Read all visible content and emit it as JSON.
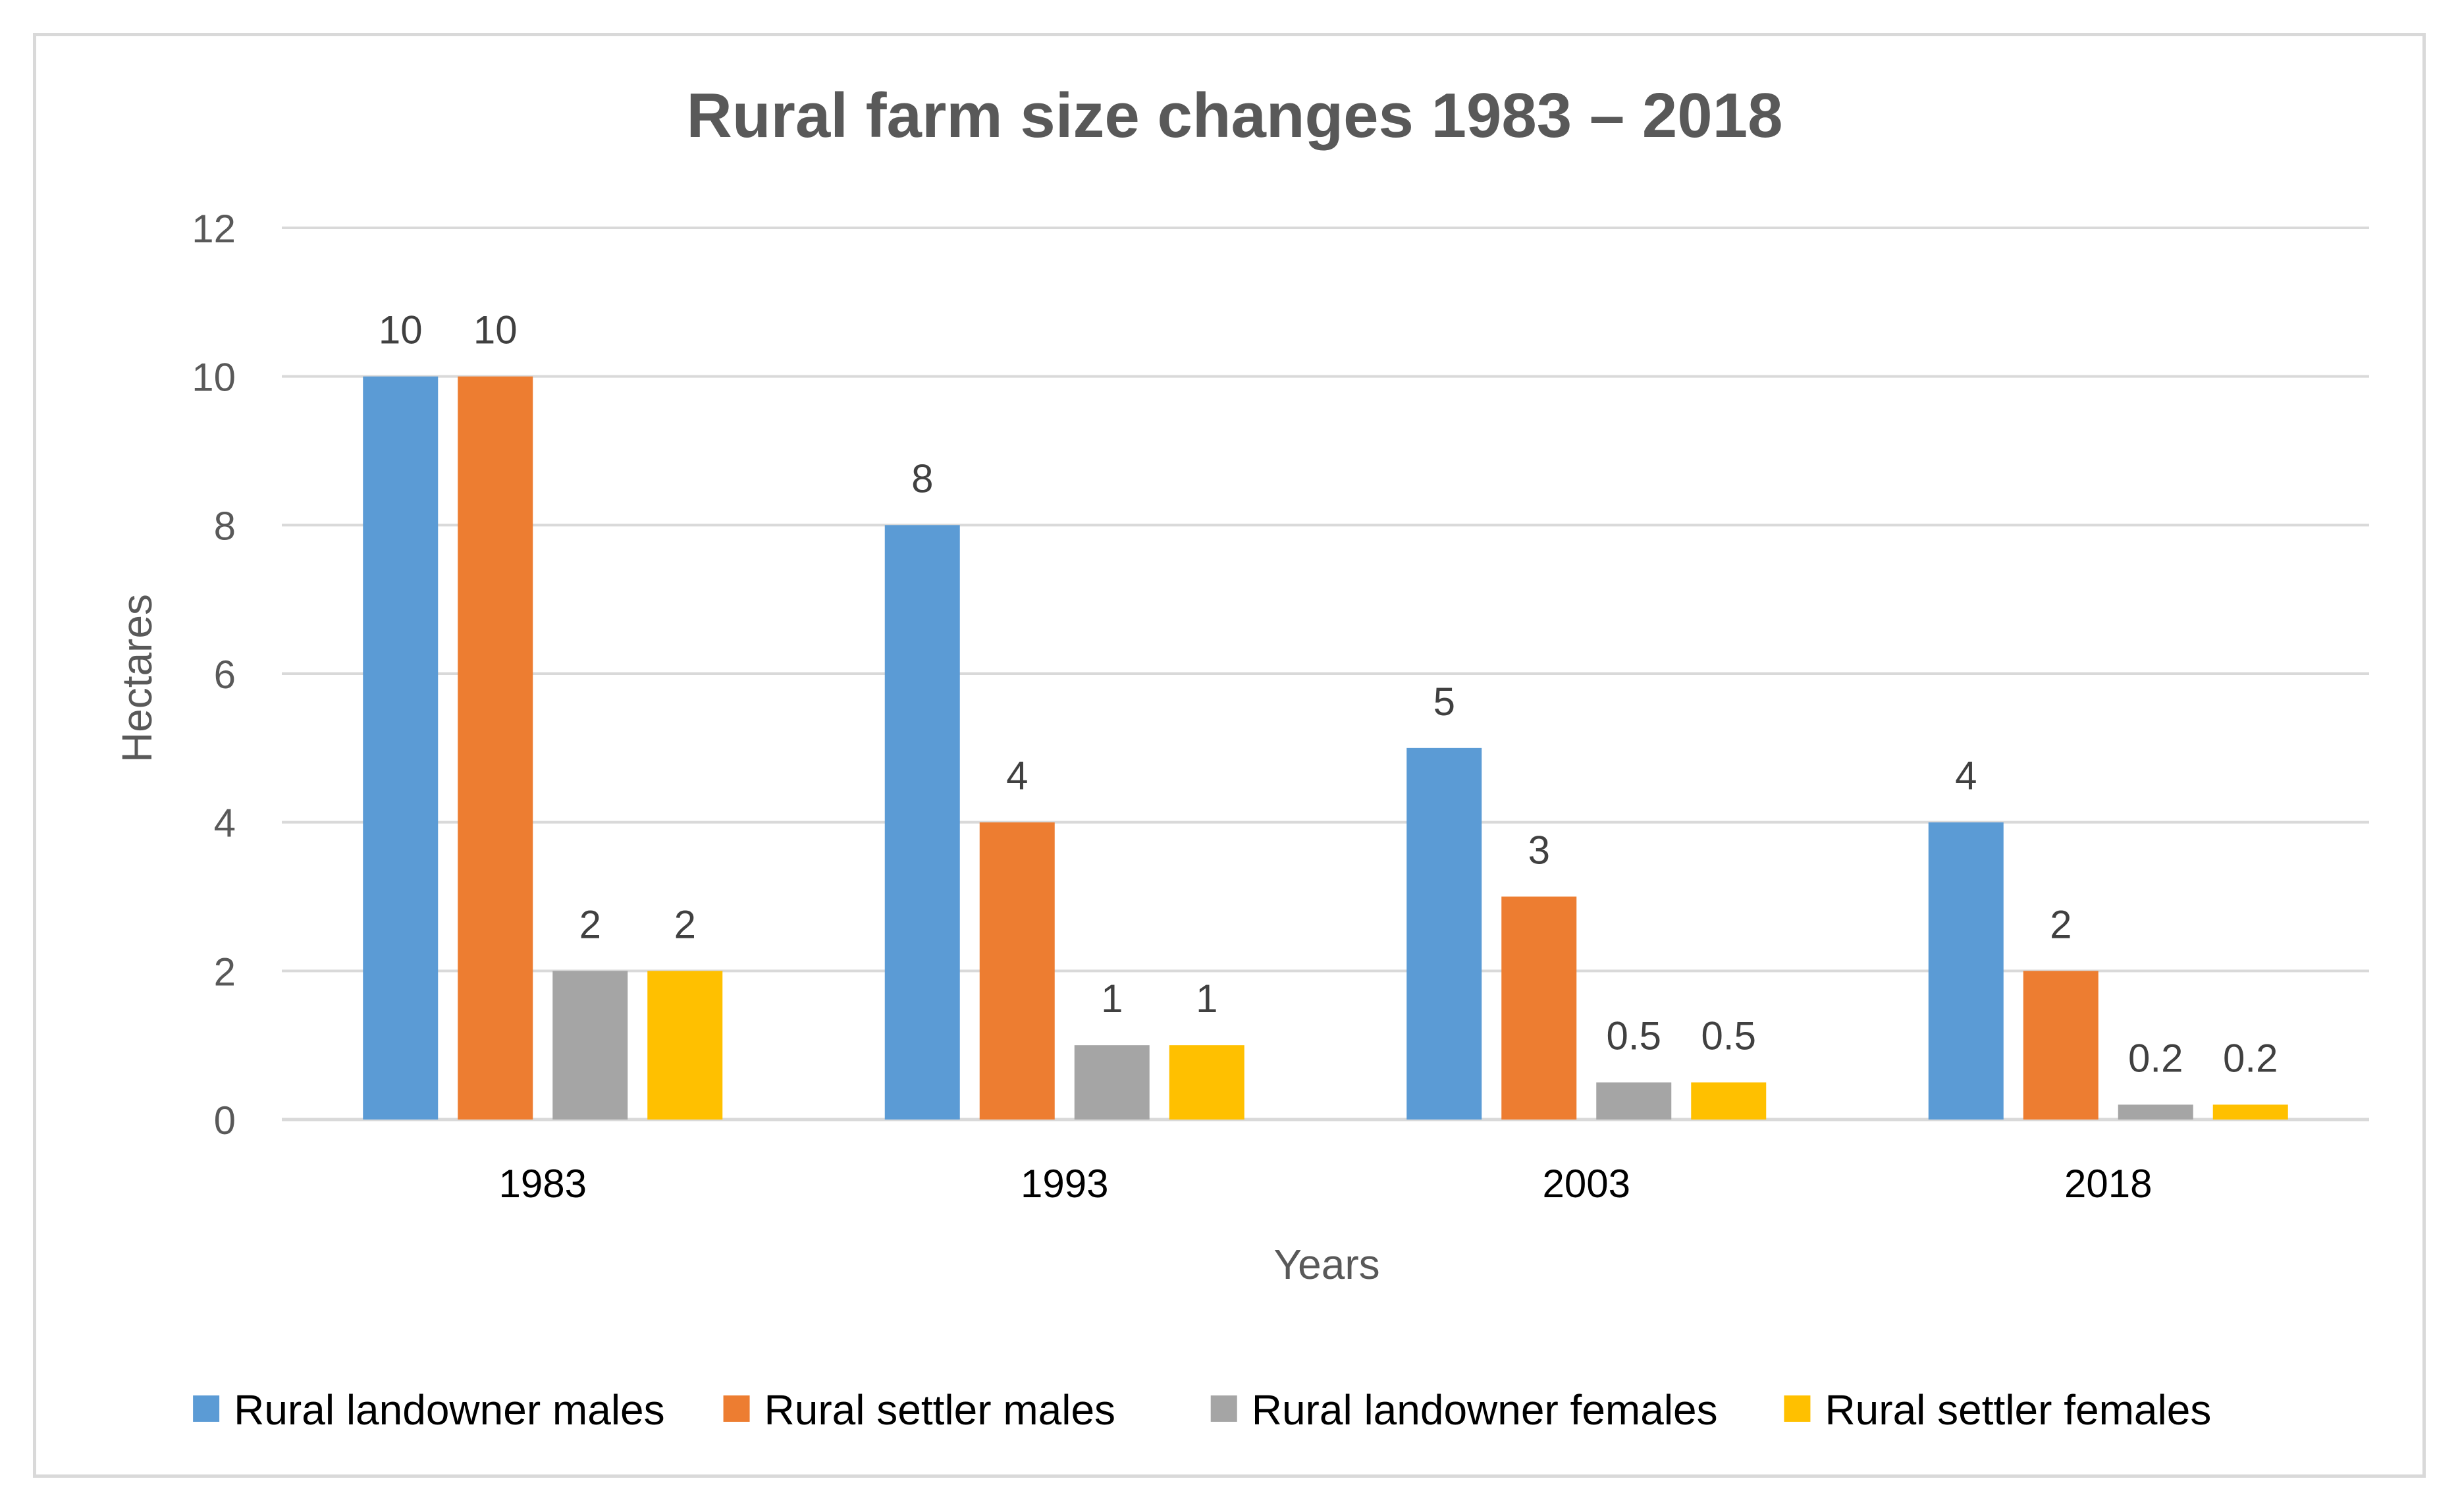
{
  "chart_data": {
    "type": "bar",
    "title": "Rural farm size changes 1983 – 2018",
    "xlabel": "Years",
    "ylabel": "Hectares",
    "ylim": [
      0,
      12
    ],
    "yticks": [
      0,
      2,
      4,
      6,
      8,
      10,
      12
    ],
    "grid": true,
    "legend_position": "bottom",
    "categories": [
      "1983",
      "1993",
      "2003",
      "2018"
    ],
    "series": [
      {
        "name": "Rural landowner males",
        "color": "#5b9bd5",
        "values": [
          10,
          8,
          5,
          4
        ]
      },
      {
        "name": "Rural settler males",
        "color": "#ed7d31",
        "values": [
          10,
          4,
          3,
          2
        ]
      },
      {
        "name": "Rural landowner females",
        "color": "#a5a5a5",
        "values": [
          2,
          1,
          0.5,
          0.2
        ]
      },
      {
        "name": "Rural settler females",
        "color": "#ffc000",
        "values": [
          2,
          1,
          0.5,
          0.2
        ]
      }
    ]
  }
}
